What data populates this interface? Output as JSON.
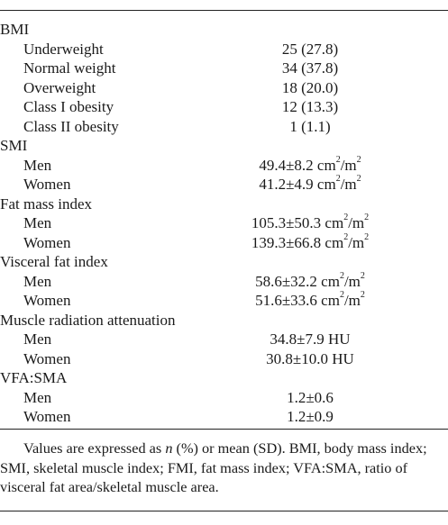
{
  "rows": [
    {
      "type": "header",
      "label": "BMI"
    },
    {
      "type": "sub",
      "label": "Underweight",
      "value": "25 (27.8)"
    },
    {
      "type": "sub",
      "label": "Normal weight",
      "value": "34 (37.8)"
    },
    {
      "type": "sub",
      "label": "Overweight",
      "value": "18 (20.0)"
    },
    {
      "type": "sub",
      "label": "Class I obesity",
      "value": "12 (13.3)"
    },
    {
      "type": "sub",
      "label": "Class II obesity",
      "value": "1 (1.1)"
    },
    {
      "type": "header",
      "label": "SMI"
    },
    {
      "type": "sub",
      "label": "Men",
      "value": "49.4±8.2 cm",
      "unit": "/m",
      "sup1": "2",
      "sup2": "2"
    },
    {
      "type": "sub",
      "label": "Women",
      "value": "41.2±4.9 cm",
      "unit": "/m",
      "sup1": "2",
      "sup2": "2"
    },
    {
      "type": "header",
      "label": "Fat mass index"
    },
    {
      "type": "sub",
      "label": "Men",
      "value": "105.3±50.3 cm",
      "unit": "/m",
      "sup1": "2",
      "sup2": "2"
    },
    {
      "type": "sub",
      "label": "Women",
      "value": "139.3±66.8 cm",
      "unit": "/m",
      "sup1": "2",
      "sup2": "2"
    },
    {
      "type": "header",
      "label": "Visceral fat index"
    },
    {
      "type": "sub",
      "label": "Men",
      "value": "58.6±32.2 cm",
      "unit": "/m",
      "sup1": "2",
      "sup2": "2"
    },
    {
      "type": "sub",
      "label": "Women",
      "value": "51.6±33.6 cm",
      "unit": "/m",
      "sup1": "2",
      "sup2": "2"
    },
    {
      "type": "header",
      "label": "Muscle radiation attenuation"
    },
    {
      "type": "sub",
      "label": "Men",
      "value": "34.8±7.9 HU"
    },
    {
      "type": "sub",
      "label": "Women",
      "value": "30.8±10.0 HU"
    },
    {
      "type": "header",
      "label": "VFA:SMA"
    },
    {
      "type": "sub",
      "label": "Men",
      "value": "1.2±0.6"
    },
    {
      "type": "sub",
      "label": "Women",
      "value": "1.2±0.9"
    }
  ],
  "footnote": {
    "pre": "Values are expressed as ",
    "italic": "n",
    "post": " (%) or mean (SD). BMI, body mass index; SMI, skeletal muscle index; FMI, fat mass index; VFA:SMA, ratio of visceral fat area/skeletal muscle area."
  }
}
